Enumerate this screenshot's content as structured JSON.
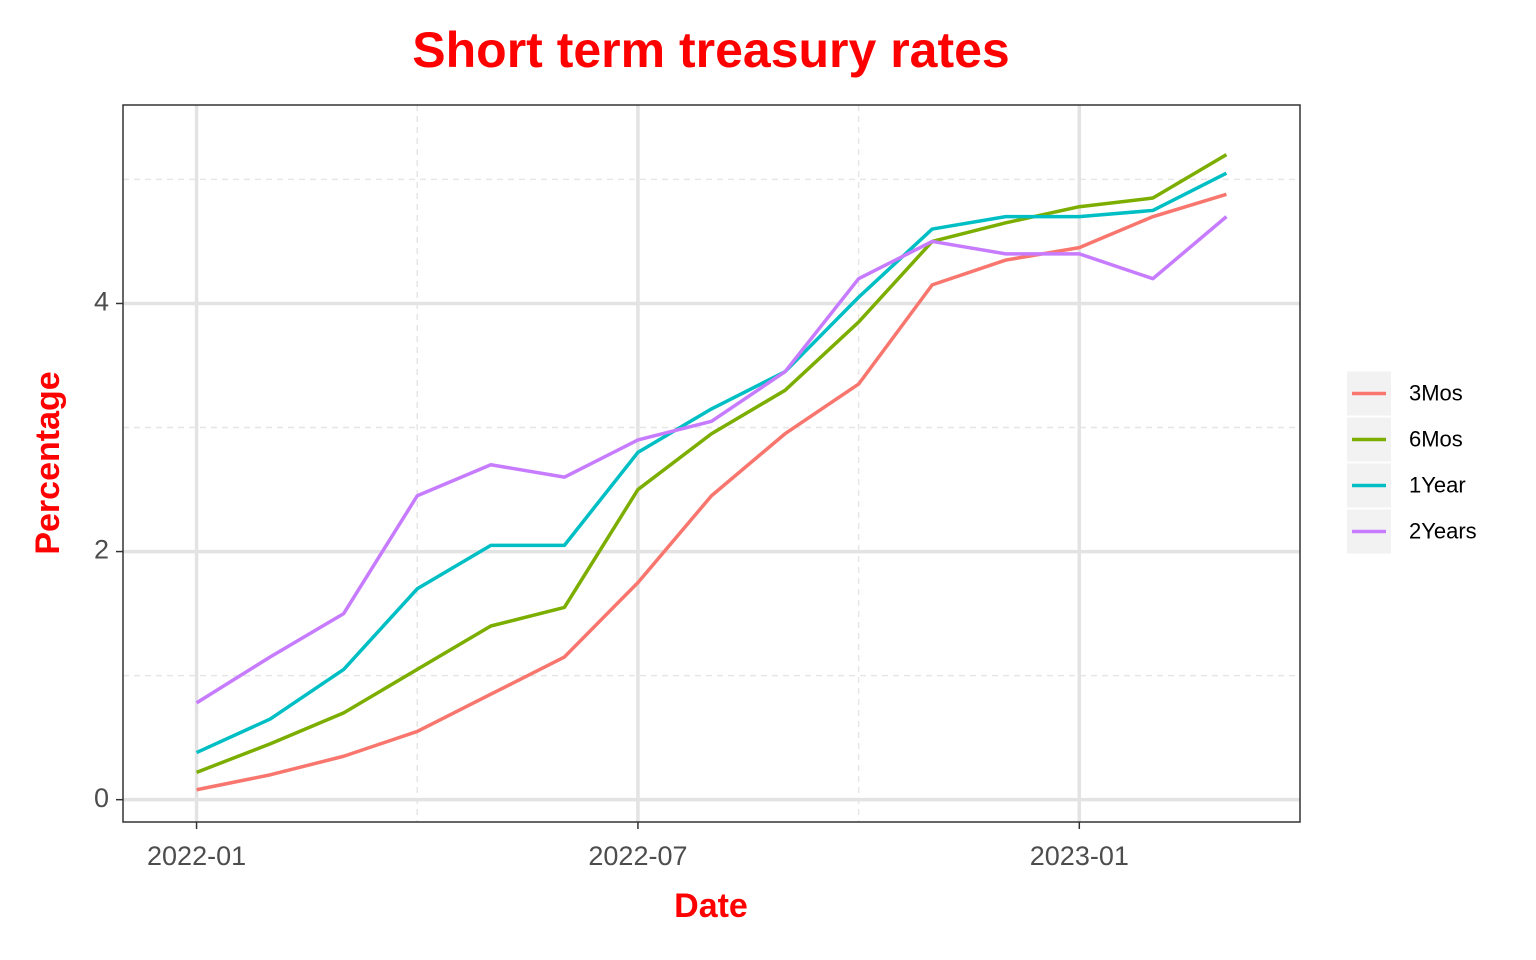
{
  "chart_data": {
    "type": "line",
    "title": "Short term treasury rates",
    "x_label": "Date",
    "y_label": "Percentage",
    "x": [
      "2022-01",
      "2022-02",
      "2022-03",
      "2022-04",
      "2022-05",
      "2022-06",
      "2022-07",
      "2022-08",
      "2022-09",
      "2022-10",
      "2022-11",
      "2022-12",
      "2023-01",
      "2023-02",
      "2023-03"
    ],
    "series": [
      {
        "name": "3Mos",
        "color": "#F8766D",
        "values": [
          0.08,
          0.2,
          0.35,
          0.55,
          0.85,
          1.15,
          1.75,
          2.45,
          2.95,
          3.35,
          4.15,
          4.35,
          4.45,
          4.7,
          4.88
        ]
      },
      {
        "name": "6Mos",
        "color": "#7CAE00",
        "values": [
          0.22,
          0.45,
          0.7,
          1.05,
          1.4,
          1.55,
          2.5,
          2.95,
          3.3,
          3.85,
          4.5,
          4.65,
          4.78,
          4.85,
          5.2
        ]
      },
      {
        "name": "1Year",
        "color": "#00BFC4",
        "values": [
          0.38,
          0.65,
          1.05,
          1.7,
          2.05,
          2.05,
          2.8,
          3.15,
          3.45,
          4.05,
          4.6,
          4.7,
          4.7,
          4.75,
          5.05
        ]
      },
      {
        "name": "2Years",
        "color": "#C77CFF",
        "values": [
          0.78,
          1.15,
          1.5,
          2.45,
          2.7,
          2.6,
          2.9,
          3.05,
          3.45,
          4.2,
          4.5,
          4.4,
          4.4,
          4.2,
          4.7
        ]
      }
    ],
    "xlim": [
      "2021-12",
      "2023-04"
    ],
    "xticks": [
      "2022-01",
      "2022-07",
      "2023-01"
    ],
    "ylim": [
      -0.18,
      5.6
    ],
    "yticks": [
      0,
      2,
      4
    ],
    "grid": true,
    "legend": "right"
  }
}
